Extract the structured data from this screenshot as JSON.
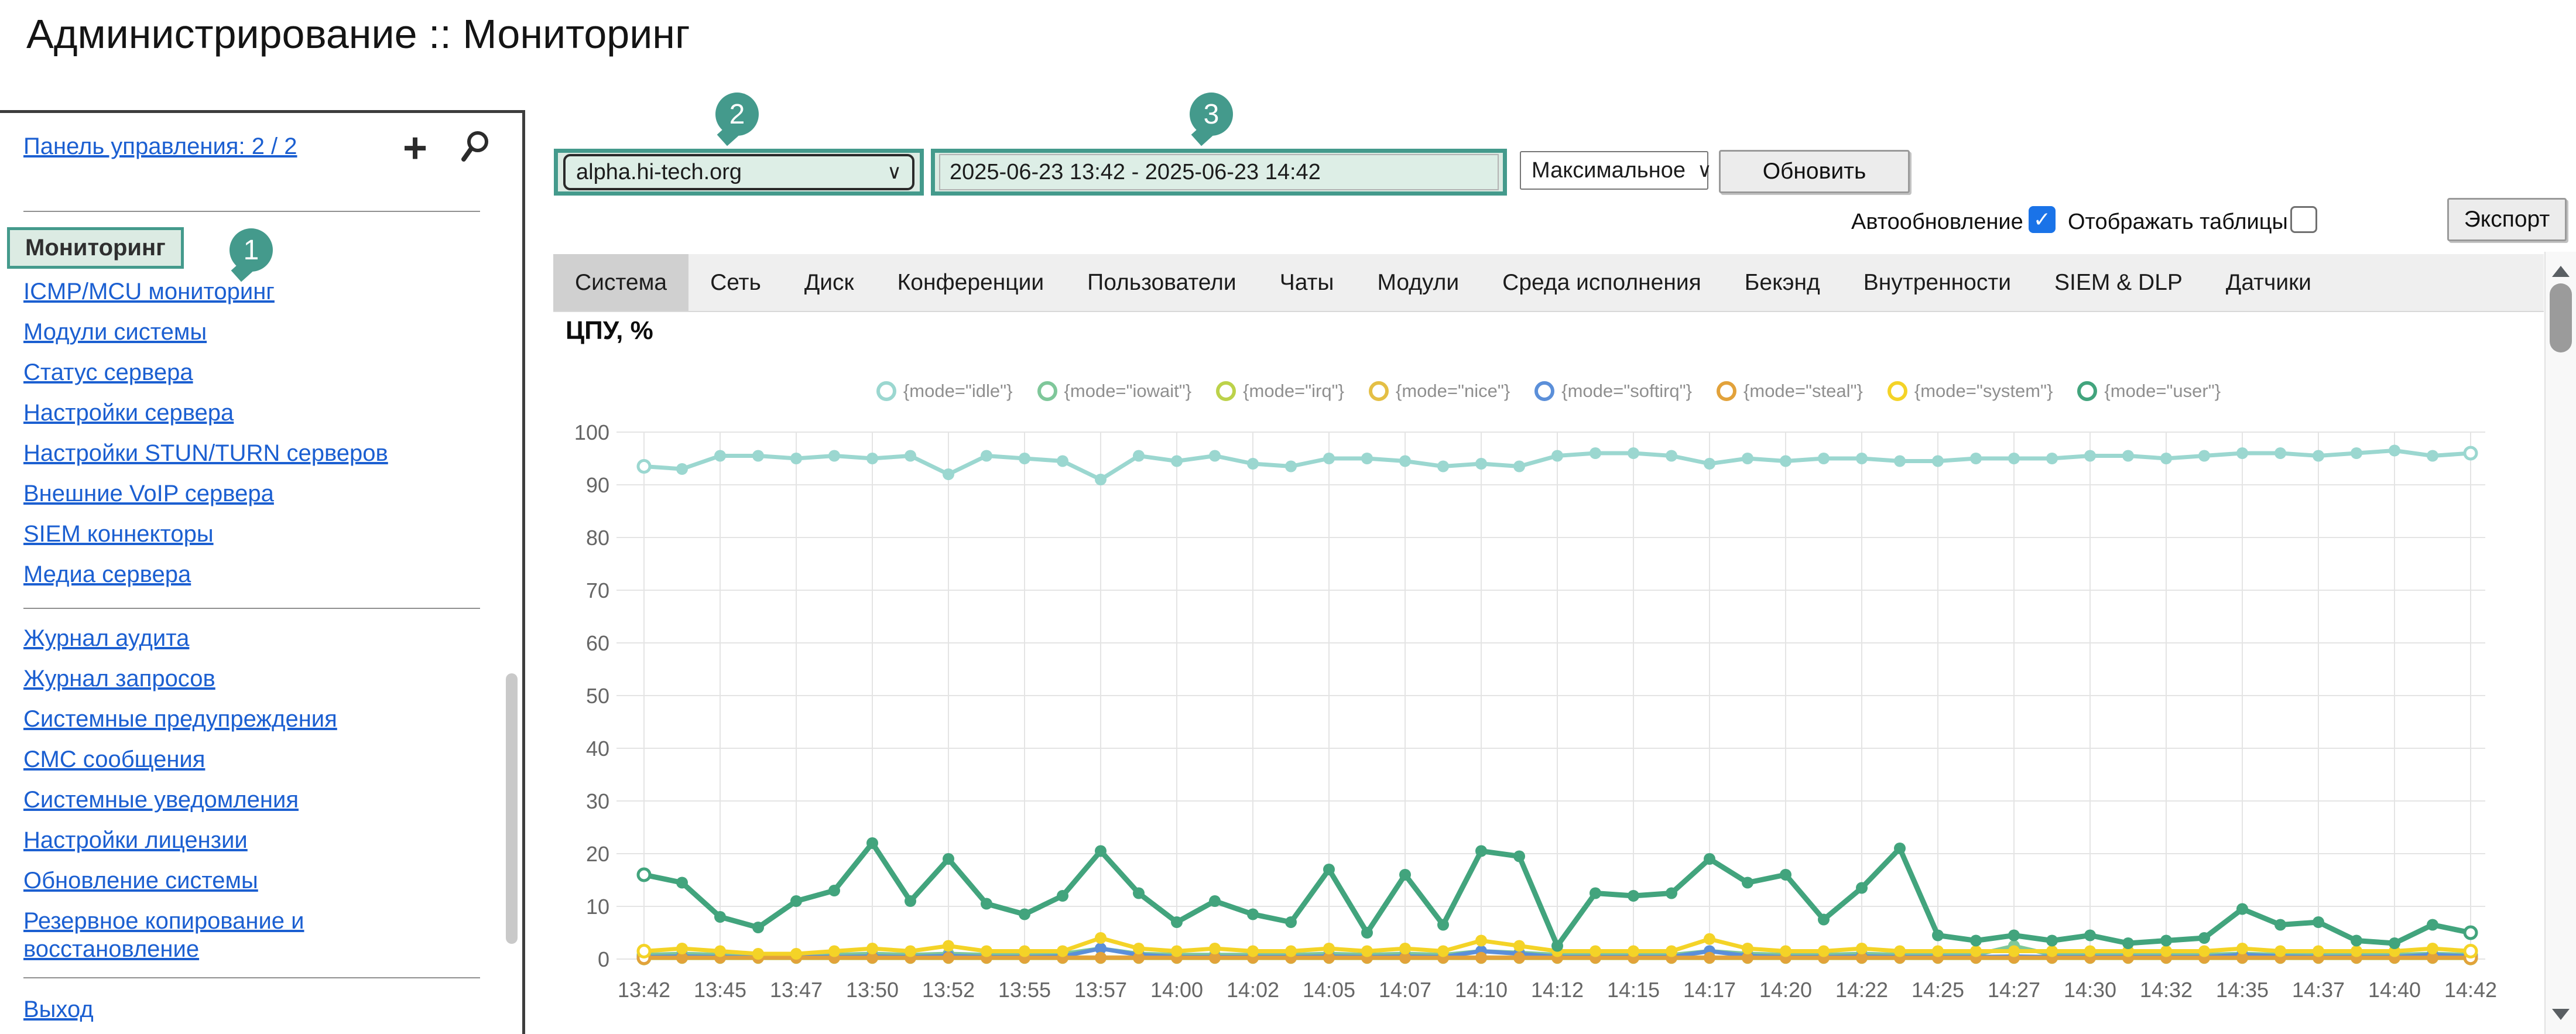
{
  "page": {
    "title": "Администрирование :: Мониторинг"
  },
  "icons": {
    "add": "+",
    "chevron": "∨",
    "check": "✓"
  },
  "callouts": [
    "1",
    "2",
    "3"
  ],
  "sidebar": {
    "panel_link": "Панель управления: 2 / 2",
    "active_item": "Мониторинг",
    "groups": [
      {
        "items": [
          "ICMP/MCU мониторинг",
          "Модули системы",
          "Статус сервера",
          "Настройки сервера",
          "Настройки STUN/TURN серверов",
          "Внешние VoIP сервера",
          "SIEM коннекторы",
          "Медиа сервера"
        ]
      },
      {
        "items": [
          "Журнал аудита",
          "Журнал запросов",
          "Системные предупреждения",
          "СМС сообщения",
          "Системные уведомления",
          "Настройки лицензии",
          "Обновление системы",
          "Резервное копирование и восстановление"
        ]
      },
      {
        "items": [
          "Выход"
        ]
      }
    ]
  },
  "toolbar": {
    "server_select": "alpha.hi-tech.org",
    "date_range": "2025-06-23 13:42 - 2025-06-23 14:42",
    "resolution_select": "Максимальное",
    "refresh_button": "Обновить",
    "autorefresh_label": "Автообновление",
    "autorefresh_checked": true,
    "show_tables_label": "Отображать таблицы",
    "show_tables_checked": false,
    "export_button": "Экспорт"
  },
  "tabs": {
    "active": "Система",
    "items": [
      "Система",
      "Сеть",
      "Диск",
      "Конференции",
      "Пользователи",
      "Чаты",
      "Модули",
      "Среда исполнения",
      "Бекэнд",
      "Внутренности",
      "SIEM & DLP",
      "Датчики"
    ]
  },
  "colors": {
    "accent_teal": "#449a8c",
    "highlight_bg": "#dcebe3",
    "link_blue": "#1b5fd1",
    "checkbox_blue": "#1a73e8",
    "tab_active_bg": "#d0d0d0",
    "tab_bar_bg": "#efefef",
    "grid_line": "#e4e4e4",
    "axis_text": "#666666"
  },
  "chart_data": {
    "type": "line",
    "title": "ЦПУ, %",
    "xlabel": "",
    "ylabel": "",
    "ylim": [
      0,
      100
    ],
    "y_ticks": [
      0,
      10,
      20,
      30,
      40,
      50,
      60,
      70,
      80,
      90,
      100
    ],
    "grid": true,
    "legend_position": "top-center",
    "x_tick_labels": [
      "13:42",
      "13:45",
      "13:47",
      "13:50",
      "13:52",
      "13:55",
      "13:57",
      "14:00",
      "14:02",
      "14:05",
      "14:07",
      "14:10",
      "14:12",
      "14:15",
      "14:17",
      "14:20",
      "14:22",
      "14:25",
      "14:27",
      "14:30",
      "14:32",
      "14:35",
      "14:37",
      "14:40",
      "14:42"
    ],
    "points_per_label_interval": 2,
    "series": [
      {
        "name": "{mode=\"idle\"}",
        "color": "#9bd7d0",
        "values": [
          93.5,
          93,
          95.5,
          95.5,
          95,
          95.5,
          95,
          95.5,
          92,
          95.5,
          95,
          94.5,
          91,
          95.5,
          94.5,
          95.5,
          94,
          93.5,
          95,
          95,
          94.5,
          93.5,
          94,
          93.5,
          95.5,
          96,
          96,
          95.5,
          94,
          95,
          94.5,
          95,
          95,
          94.5,
          94.5,
          95,
          95,
          95,
          95.5,
          95.5,
          95,
          95.5,
          96,
          96,
          95.5,
          96,
          96.5,
          95.5,
          96
        ]
      },
      {
        "name": "{mode=\"iowait\"}",
        "color": "#7fc79a",
        "values": [
          0.8,
          1,
          0.8,
          0.5,
          0.8,
          0.8,
          1,
          0.8,
          1,
          0.8,
          0.8,
          1,
          2,
          1,
          0.8,
          0.8,
          0.8,
          0.8,
          1,
          0.8,
          1,
          0.8,
          1.5,
          1.2,
          0.8,
          0.8,
          0.8,
          0.8,
          1.5,
          1,
          0.8,
          0.8,
          1,
          0.8,
          0.8,
          0.8,
          2.5,
          0.8,
          0.8,
          0.8,
          0.8,
          0.8,
          1,
          0.8,
          0.8,
          0.8,
          0.8,
          1,
          0.8
        ]
      },
      {
        "name": "{mode=\"irq\"}",
        "color": "#bcd24a",
        "values": [
          0.2,
          0.2,
          0.2,
          0.2,
          0.2,
          0.2,
          0.2,
          0.2,
          0.2,
          0.2,
          0.2,
          0.2,
          0.2,
          0.2,
          0.2,
          0.2,
          0.2,
          0.2,
          0.2,
          0.2,
          0.2,
          0.2,
          0.2,
          0.2,
          0.2,
          0.2,
          0.2,
          0.2,
          0.2,
          0.2,
          0.2,
          0.2,
          0.2,
          0.2,
          0.2,
          0.2,
          0.2,
          0.2,
          0.2,
          0.2,
          0.2,
          0.2,
          0.2,
          0.2,
          0.2,
          0.2,
          0.2,
          0.2,
          0.2
        ]
      },
      {
        "name": "{mode=\"nice\"}",
        "color": "#e4bf45",
        "values": [
          0.3,
          0.3,
          0.3,
          0.3,
          0.3,
          0.3,
          0.3,
          0.3,
          0.3,
          0.3,
          0.3,
          0.3,
          0.3,
          0.3,
          0.3,
          0.3,
          0.3,
          0.3,
          0.3,
          0.3,
          0.3,
          0.3,
          0.3,
          0.3,
          0.3,
          0.3,
          0.3,
          0.3,
          0.3,
          0.3,
          0.3,
          0.3,
          0.3,
          0.3,
          0.3,
          0.3,
          0.3,
          0.3,
          0.3,
          0.3,
          0.3,
          0.3,
          0.3,
          0.3,
          0.3,
          0.3,
          0.3,
          0.3,
          0.3
        ]
      },
      {
        "name": "{mode=\"softirq\"}",
        "color": "#5b8fd9",
        "values": [
          0.4,
          0.5,
          0.4,
          0.3,
          0.4,
          0.4,
          0.5,
          0.4,
          0.6,
          0.4,
          0.4,
          0.5,
          2,
          0.8,
          0.4,
          0.4,
          0.4,
          0.4,
          0.5,
          0.4,
          0.5,
          0.4,
          1.5,
          1,
          0.4,
          0.4,
          0.4,
          0.4,
          1.5,
          0.6,
          0.4,
          0.4,
          0.5,
          0.4,
          0.4,
          0.4,
          0.5,
          0.4,
          0.4,
          0.4,
          0.4,
          0.4,
          0.8,
          0.5,
          0.4,
          0.4,
          0.4,
          0.8,
          0.5
        ]
      },
      {
        "name": "{mode=\"steal\"}",
        "color": "#e2a23b",
        "values": [
          0.25,
          0.25,
          0.25,
          0.25,
          0.25,
          0.25,
          0.25,
          0.25,
          0.25,
          0.25,
          0.25,
          0.25,
          0.25,
          0.25,
          0.25,
          0.25,
          0.25,
          0.25,
          0.25,
          0.25,
          0.25,
          0.25,
          0.25,
          0.25,
          0.25,
          0.25,
          0.25,
          0.25,
          0.25,
          0.25,
          0.25,
          0.25,
          0.25,
          0.25,
          0.25,
          0.25,
          0.25,
          0.25,
          0.25,
          0.25,
          0.25,
          0.25,
          0.25,
          0.25,
          0.25,
          0.25,
          0.25,
          0.25,
          0.25
        ]
      },
      {
        "name": "{mode=\"system\"}",
        "color": "#f4d327",
        "values": [
          1.5,
          2,
          1.5,
          1,
          1,
          1.5,
          2,
          1.5,
          2.5,
          1.5,
          1.5,
          1.5,
          4,
          2,
          1.5,
          2,
          1.5,
          1.5,
          2,
          1.5,
          2,
          1.5,
          3.5,
          2.5,
          1.5,
          1.5,
          1.5,
          1.5,
          3.8,
          2,
          1.5,
          1.5,
          2,
          1.5,
          1.5,
          1.5,
          1.5,
          1.5,
          1.5,
          1.5,
          1.5,
          1.5,
          2,
          1.5,
          1.5,
          1.5,
          1.5,
          2,
          1.5
        ]
      },
      {
        "name": "{mode=\"user\"}",
        "color": "#42a47d",
        "values": [
          16,
          14.5,
          8,
          6,
          11,
          13,
          22,
          11,
          19,
          10.5,
          8.5,
          12,
          20.5,
          12.5,
          7,
          11,
          8.5,
          7,
          17,
          5,
          16,
          6.5,
          20.5,
          19.5,
          2.5,
          12.5,
          12,
          12.5,
          19,
          14.5,
          16,
          7.5,
          13.5,
          21,
          4.5,
          3.5,
          4.5,
          3.5,
          4.5,
          3,
          3.5,
          4,
          9.5,
          6.5,
          7,
          3.5,
          3,
          6.5,
          5
        ]
      }
    ]
  }
}
